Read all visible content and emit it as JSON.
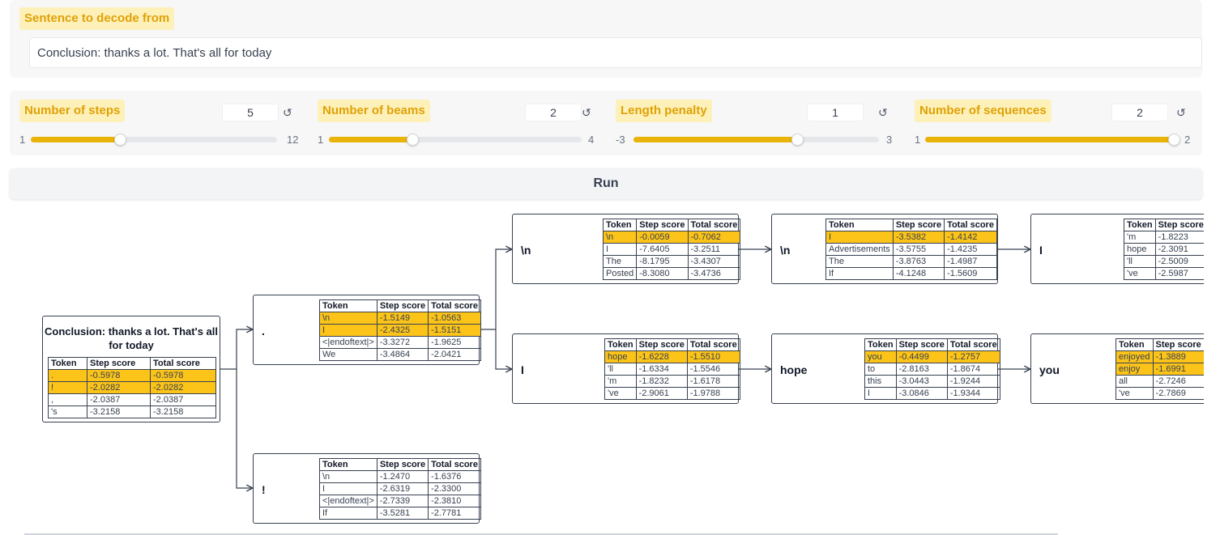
{
  "sentence": {
    "label": "Sentence to decode from",
    "value": "Conclusion: thanks a lot. That's all for today"
  },
  "sliders": [
    {
      "label": "Number of steps",
      "value": "5",
      "min": "1",
      "max": "12",
      "fraction": 0.364
    },
    {
      "label": "Number of beams",
      "value": "2",
      "min": "1",
      "max": "4",
      "fraction": 0.333
    },
    {
      "label": "Length penalty",
      "value": "1",
      "min": "-3",
      "max": "3",
      "fraction": 0.667
    },
    {
      "label": "Number of sequences",
      "value": "2",
      "min": "1",
      "max": "2",
      "fraction": 1.0
    }
  ],
  "reset_glyph": "↺",
  "run_label": "Run",
  "table_headers": [
    "Token",
    "Step score",
    "Total score"
  ],
  "root": {
    "title": "Conclusion: thanks a lot. That's all for today",
    "rows": [
      {
        "token": ".",
        "step": "-0.5978",
        "total": "-0.5978",
        "sel": true
      },
      {
        "token": "!",
        "step": "-2.0282",
        "total": "-2.0282",
        "sel": true
      },
      {
        "token": ",",
        "step": "-2.0387",
        "total": "-2.0387",
        "sel": false
      },
      {
        "token": "'s",
        "step": "-3.2158",
        "total": "-3.2158",
        "sel": false
      }
    ]
  },
  "nodes": {
    "n1": {
      "token": ".",
      "rows": [
        {
          "token": "\\n",
          "step": "-1.5149",
          "total": "-1.0563",
          "sel": true
        },
        {
          "token": "I",
          "step": "-2.4325",
          "total": "-1.5151",
          "sel": true
        },
        {
          "token": "<|endoftext|>",
          "step": "-3.3272",
          "total": "-1.9625",
          "sel": false
        },
        {
          "token": "We",
          "step": "-3.4864",
          "total": "-2.0421",
          "sel": false
        }
      ]
    },
    "n2": {
      "token": "!",
      "rows": [
        {
          "token": "\\n",
          "step": "-1.2470",
          "total": "-1.6376",
          "sel": false
        },
        {
          "token": "I",
          "step": "-2.6319",
          "total": "-2.3300",
          "sel": false
        },
        {
          "token": "<|endoftext|>",
          "step": "-2.7339",
          "total": "-2.3810",
          "sel": false
        },
        {
          "token": "If",
          "step": "-3.5281",
          "total": "-2.7781",
          "sel": false
        }
      ]
    },
    "n3": {
      "token": "\\n",
      "rows": [
        {
          "token": "\\n",
          "step": "-0.0059",
          "total": "-0.7062",
          "sel": true
        },
        {
          "token": "I",
          "step": "-7.6405",
          "total": "-3.2511",
          "sel": false
        },
        {
          "token": "The",
          "step": "-8.1795",
          "total": "-3.4307",
          "sel": false
        },
        {
          "token": "Posted",
          "step": "-8.3080",
          "total": "-3.4736",
          "sel": false
        }
      ]
    },
    "n4": {
      "token": "I",
      "rows": [
        {
          "token": "hope",
          "step": "-1.6228",
          "total": "-1.5510",
          "sel": true
        },
        {
          "token": "'ll",
          "step": "-1.6334",
          "total": "-1.5546",
          "sel": false
        },
        {
          "token": "'m",
          "step": "-1.8232",
          "total": "-1.6178",
          "sel": false
        },
        {
          "token": "'ve",
          "step": "-2.9061",
          "total": "-1.9788",
          "sel": false
        }
      ]
    },
    "n5": {
      "token": "\\n",
      "rows": [
        {
          "token": "I",
          "step": "-3.5382",
          "total": "-1.4142",
          "sel": true
        },
        {
          "token": "Advertisements",
          "step": "-3.5755",
          "total": "-1.4235",
          "sel": false
        },
        {
          "token": "The",
          "step": "-3.8763",
          "total": "-1.4987",
          "sel": false
        },
        {
          "token": "If",
          "step": "-4.1248",
          "total": "-1.5609",
          "sel": false
        }
      ]
    },
    "n6": {
      "token": "hope",
      "rows": [
        {
          "token": "you",
          "step": "-0.4499",
          "total": "-1.2757",
          "sel": true
        },
        {
          "token": "to",
          "step": "-2.8163",
          "total": "-1.8674",
          "sel": false
        },
        {
          "token": "this",
          "step": "-3.0443",
          "total": "-1.9244",
          "sel": false
        },
        {
          "token": "I",
          "step": "-3.0846",
          "total": "-1.9344",
          "sel": false
        }
      ]
    },
    "n7": {
      "token": "I",
      "headers": [
        "Token",
        "Step score"
      ],
      "rows": [
        {
          "token": "'m",
          "step": "-1.8223",
          "sel": false
        },
        {
          "token": "hope",
          "step": "-2.3091",
          "sel": false
        },
        {
          "token": "'ll",
          "step": "-2.5009",
          "sel": false
        },
        {
          "token": "'ve",
          "step": "-2.5987",
          "sel": false
        }
      ]
    },
    "n8": {
      "token": "you",
      "headers": [
        "Token",
        "Step score"
      ],
      "rows": [
        {
          "token": "enjoyed",
          "step": "-1.3889",
          "sel": true
        },
        {
          "token": "enjoy",
          "step": "-1.6991",
          "sel": true
        },
        {
          "token": "all",
          "step": "-2.7246",
          "sel": false
        },
        {
          "token": "'ve",
          "step": "-2.7869",
          "sel": false
        }
      ]
    }
  }
}
